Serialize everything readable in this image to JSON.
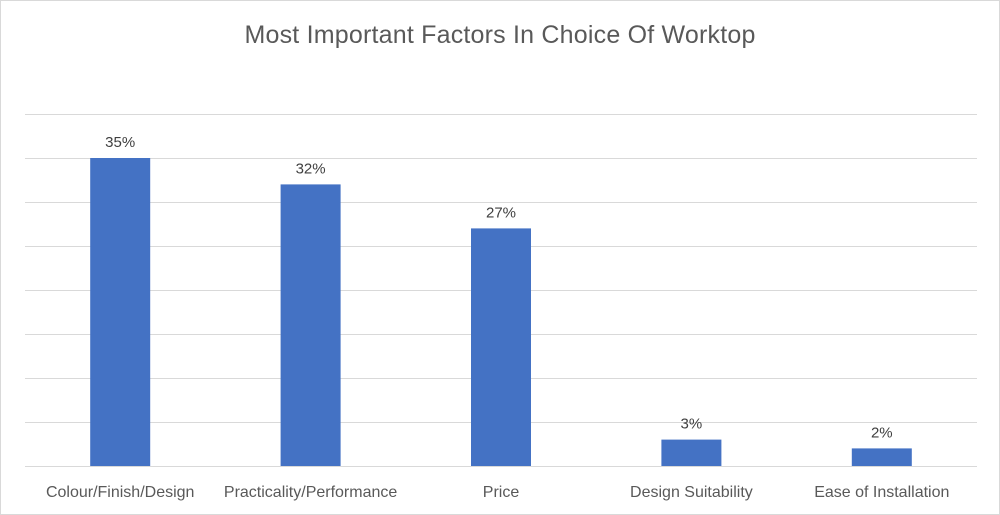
{
  "chart_data": {
    "type": "bar",
    "title": "Most Important Factors In Choice Of Worktop",
    "xlabel": "",
    "ylabel": "",
    "categories": [
      "Colour/Finish/Design",
      "Practicality/Performance",
      "Price",
      "Design Suitability",
      "Ease of Installation"
    ],
    "values": [
      35,
      32,
      27,
      3,
      2
    ],
    "data_labels": [
      "35%",
      "32%",
      "27%",
      "3%",
      "2%"
    ],
    "ylim": [
      0,
      40
    ],
    "ytick_step": 5,
    "y_axis_visible": false,
    "grid": true,
    "legend": "none",
    "bar_color": "#4472C4",
    "gridline_color": "#d9d9d9"
  }
}
